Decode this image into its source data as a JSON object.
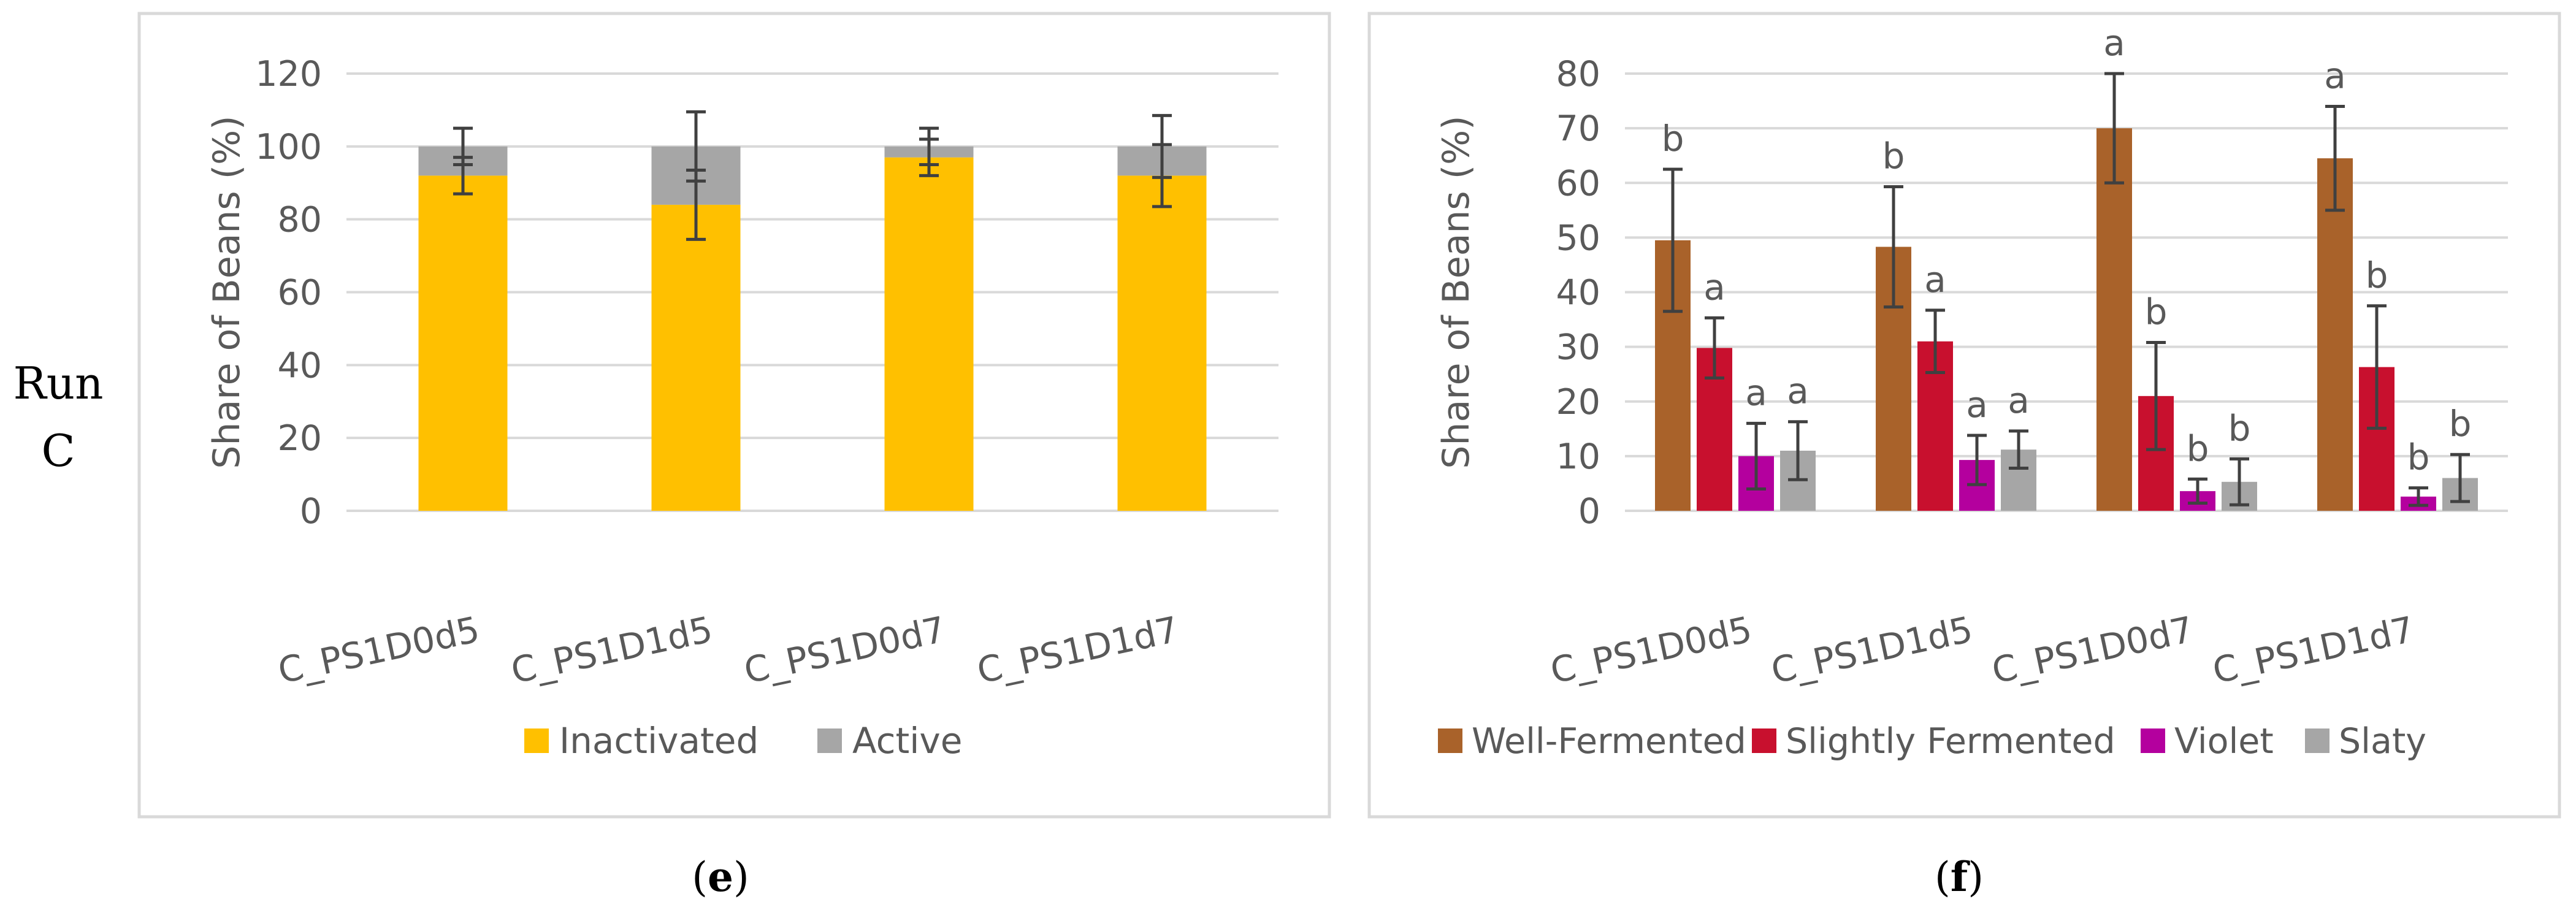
{
  "row_label_line1": "Run",
  "row_label_line2": "C",
  "panel_e_label": "e",
  "panel_f_label": "f",
  "chart_data": [
    {
      "type": "bar",
      "stacked": true,
      "categories": [
        "C_PS1D0d5",
        "C_PS1D1d5",
        "C_PS1D0d7",
        "C_PS1D1d7"
      ],
      "series": [
        {
          "name": "Inactivated",
          "color": "#ffc000",
          "values": [
            92,
            84,
            97,
            92
          ]
        },
        {
          "name": "Active",
          "color": "#a6a6a6",
          "values": [
            8,
            16,
            3,
            8
          ]
        }
      ],
      "error_bars": [
        {
          "series": "Inactivated",
          "center": [
            92,
            84,
            97,
            92
          ],
          "err": [
            5,
            9.5,
            5,
            8.5
          ]
        },
        {
          "series": "Active",
          "center": [
            100,
            100,
            100,
            100
          ],
          "err": [
            5,
            9.5,
            5,
            8.5
          ]
        }
      ],
      "title": "",
      "xlabel": "",
      "ylabel": "Share of Beans (%)",
      "ylim": [
        0,
        120
      ],
      "yticks": [
        0,
        20,
        40,
        60,
        80,
        100,
        120
      ],
      "grid": true,
      "legend": "bottom"
    },
    {
      "type": "bar",
      "categories": [
        "C_PS1D0d5",
        "C_PS1D1d5",
        "C_PS1D0d7",
        "C_PS1D1d7"
      ],
      "series": [
        {
          "name": "Well-Fermented",
          "color": "#a9622a",
          "values": [
            49.5,
            48.3,
            70,
            64.5
          ],
          "err": [
            13,
            11,
            10,
            9.5
          ],
          "letters": [
            "b",
            "b",
            "a",
            "a"
          ]
        },
        {
          "name": "Slightly Fermented",
          "color": "#c8102e",
          "values": [
            29.8,
            31,
            21,
            26.3
          ],
          "err": [
            5.5,
            5.7,
            9.8,
            11.2
          ],
          "letters": [
            "a",
            "a",
            "b",
            "b"
          ]
        },
        {
          "name": "Violet",
          "color": "#b4009e",
          "values": [
            10,
            9.3,
            3.6,
            2.6
          ],
          "err": [
            6,
            4.5,
            2.2,
            1.6
          ],
          "letters": [
            "a",
            "a",
            "b",
            "b"
          ]
        },
        {
          "name": "Slaty",
          "color": "#a6a6a6",
          "values": [
            11,
            11.2,
            5.3,
            6
          ],
          "err": [
            5.3,
            3.4,
            4.2,
            4.3
          ],
          "letters": [
            "a",
            "a",
            "b",
            "b"
          ]
        }
      ],
      "title": "",
      "xlabel": "",
      "ylabel": "Share of Beans (%)",
      "ylim": [
        0,
        80
      ],
      "yticks": [
        0,
        10,
        20,
        30,
        40,
        50,
        60,
        70,
        80
      ],
      "grid": true,
      "legend": "bottom"
    }
  ]
}
